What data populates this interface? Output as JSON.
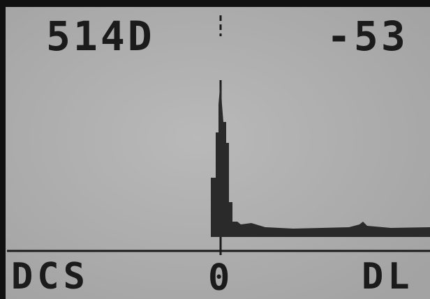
{
  "display": {
    "top_left": "514D",
    "top_right": "-53",
    "bottom_left": "DCS",
    "bottom_center": "0",
    "bottom_right": "DL"
  }
}
